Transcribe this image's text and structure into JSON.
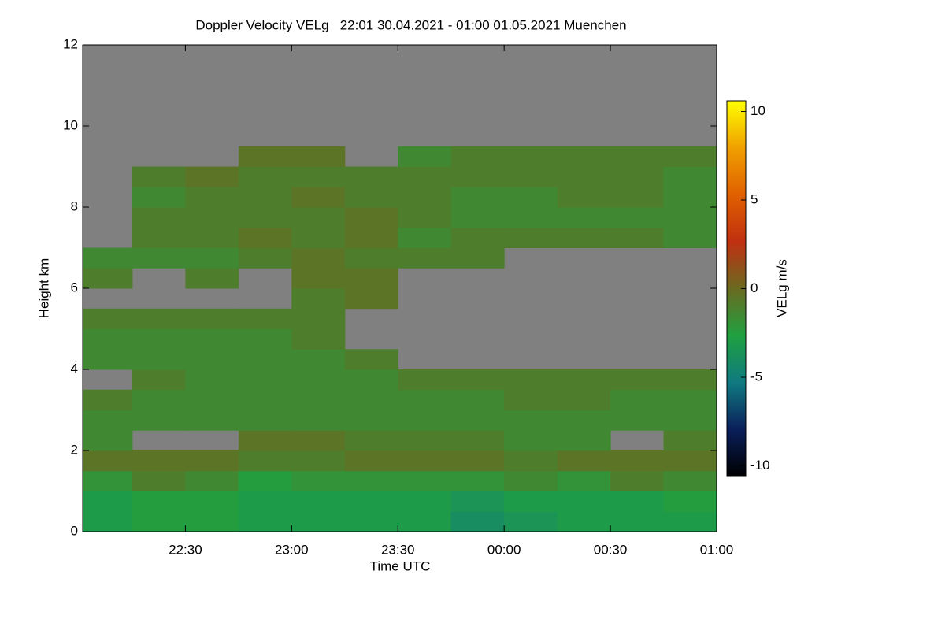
{
  "chart_data": {
    "type": "heatmap",
    "title": "Doppler Velocity VELg   22:01 30.04.2021 - 01:00 01.05.2021 Muenchen",
    "x_label": "Time UTC",
    "y_label": "Height km",
    "colorbar_label": "VELg m/s",
    "xlim": [
      22.0167,
      25.0
    ],
    "xticks": [
      {
        "value": 22.5,
        "label": "22:30"
      },
      {
        "value": 23.0,
        "label": "23:00"
      },
      {
        "value": 23.5,
        "label": "23:30"
      },
      {
        "value": 24.0,
        "label": "00:00"
      },
      {
        "value": 24.5,
        "label": "00:30"
      },
      {
        "value": 25.0,
        "label": "01:00"
      }
    ],
    "ylim": [
      0,
      12
    ],
    "yticks": [
      0,
      2,
      4,
      6,
      8,
      10,
      12
    ],
    "clim": [
      -10.6,
      10.6
    ],
    "cticks": [
      -10,
      -5,
      0,
      5,
      10
    ],
    "colormap": [
      "#000000",
      "#0a1f5a",
      "#0f7a80",
      "#20a040",
      "#6a6a20",
      "#c03010",
      "#e06000",
      "#f0a000",
      "#ffff00"
    ],
    "missing_color": "#808080",
    "x_edges": [
      22.0167,
      22.25,
      22.5,
      22.75,
      23.0,
      23.25,
      23.5,
      23.75,
      24.0,
      24.25,
      24.5,
      24.75,
      25.0
    ],
    "y_edges": [
      0,
      0.5,
      1,
      1.5,
      2,
      2.5,
      3,
      3.5,
      4,
      4.5,
      5,
      5.5,
      6,
      6.5,
      7,
      7.5,
      8,
      8.5,
      9,
      9.5,
      10,
      10.5,
      11,
      11.5,
      12
    ],
    "values": [
      [
        -3,
        -3,
        -2,
        -0.5,
        -1.5,
        -1.5,
        -1,
        null,
        -1.5,
        -1.5,
        -1,
        null,
        -1,
        -1.5,
        null,
        null,
        null,
        null,
        null,
        null,
        null,
        null,
        null,
        null
      ],
      [
        -2.5,
        -2.5,
        -1,
        -0.5,
        null,
        -1.5,
        -1.5,
        -1,
        -1.5,
        -1.5,
        -1,
        null,
        null,
        -1.5,
        -1,
        -1,
        -1.5,
        -1,
        null,
        null,
        null,
        null,
        null,
        null
      ],
      [
        -2.5,
        -2.5,
        -1.5,
        -0.5,
        null,
        -1.5,
        -1.5,
        -1.5,
        -1.5,
        -1.5,
        -1,
        null,
        -1,
        -1.5,
        -1,
        -1,
        -1,
        -0.5,
        null,
        null,
        null,
        null,
        null,
        null
      ],
      [
        -3,
        -3,
        -2.5,
        -1,
        -0.5,
        -1.5,
        -1.5,
        -1.5,
        -1.5,
        -1.5,
        -1,
        null,
        null,
        -1,
        -0.5,
        -1,
        -1,
        -1,
        -0.5,
        null,
        null,
        null,
        null,
        null
      ],
      [
        -3,
        -3,
        -2,
        -1,
        -0.5,
        -1.5,
        -1.5,
        -1.5,
        -1.5,
        -1,
        -1,
        -1,
        -0.5,
        -0.5,
        -1,
        -1,
        -0.5,
        -1,
        -0.5,
        null,
        null,
        null,
        null,
        null
      ],
      [
        -3,
        -3,
        -2,
        -0.5,
        -1,
        -1.5,
        -1.5,
        -1.5,
        -1,
        null,
        null,
        -0.5,
        -0.5,
        -1,
        -0.5,
        -0.5,
        -1,
        -1,
        null,
        null,
        null,
        null,
        null,
        null
      ],
      [
        -3,
        -3,
        -2,
        -0.5,
        -1,
        -1.5,
        -1.5,
        -1,
        null,
        null,
        null,
        null,
        null,
        -1,
        -1.5,
        -1,
        -1,
        -1,
        -1.5,
        null,
        null,
        null,
        null,
        null
      ],
      [
        -4,
        -3.5,
        -2,
        -0.5,
        -1,
        -1.5,
        -1.5,
        -1,
        null,
        null,
        null,
        null,
        null,
        -1,
        -1,
        -1.5,
        -1.5,
        -1,
        -1,
        null,
        null,
        null,
        null,
        null
      ],
      [
        -3.5,
        -3,
        -1.5,
        -1,
        -1.5,
        -1.5,
        -1,
        -1,
        null,
        null,
        null,
        null,
        null,
        null,
        -1,
        -1.5,
        -1.5,
        -1,
        -1,
        null,
        null,
        null,
        null,
        null
      ],
      [
        -3,
        -3,
        -2,
        -0.5,
        -1.5,
        -1.5,
        -1,
        -1,
        null,
        null,
        null,
        null,
        null,
        null,
        -1,
        -1.5,
        -1,
        -1,
        -1,
        null,
        null,
        null,
        null,
        null
      ],
      [
        -3,
        -3,
        -1,
        -0.5,
        null,
        -1.5,
        -1.5,
        -1,
        null,
        null,
        null,
        null,
        null,
        null,
        -1,
        -1.5,
        -1,
        -1,
        -1,
        null,
        null,
        null,
        null,
        null
      ],
      [
        -3,
        -2.5,
        -1.5,
        -0.5,
        -1,
        -1.5,
        -1.5,
        -1,
        null,
        null,
        null,
        null,
        null,
        null,
        -1.5,
        -1.5,
        -1.5,
        -1.5,
        -1,
        null,
        null,
        null,
        null,
        null
      ]
    ]
  }
}
